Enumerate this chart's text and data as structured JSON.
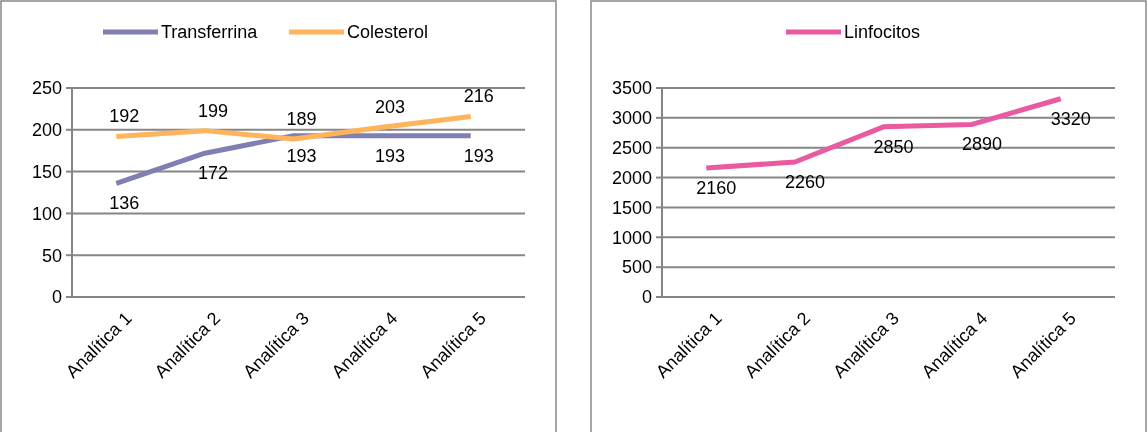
{
  "chart_data": [
    {
      "type": "line",
      "categories": [
        "Analítica 1",
        "Analítica 2",
        "Analítica 3",
        "Analítica 4",
        "Analítica 5"
      ],
      "series": [
        {
          "name": "Transferrina",
          "color": "#7f7fb4",
          "values": [
            136,
            172,
            193,
            193,
            193
          ]
        },
        {
          "name": "Colesterol",
          "color": "#ffb35a",
          "values": [
            192,
            199,
            189,
            203,
            216
          ]
        }
      ],
      "ylim": [
        0,
        250
      ],
      "yticks": [
        0,
        50,
        100,
        150,
        200,
        250
      ],
      "grid": "y",
      "legend": "top",
      "marker": "none",
      "data_labels": true
    },
    {
      "type": "line",
      "categories": [
        "Analítica 1",
        "Analítica 2",
        "Analítica 3",
        "Analítica 4",
        "Analítica 5"
      ],
      "series": [
        {
          "name": "Linfocitos",
          "color": "#ea5aa0",
          "values": [
            2160,
            2260,
            2850,
            2890,
            3320
          ]
        }
      ],
      "ylim": [
        0,
        3500
      ],
      "yticks": [
        0,
        500,
        1000,
        1500,
        2000,
        2500,
        3000,
        3500
      ],
      "grid": "y",
      "legend": "top",
      "marker": "none",
      "data_labels": true
    }
  ]
}
